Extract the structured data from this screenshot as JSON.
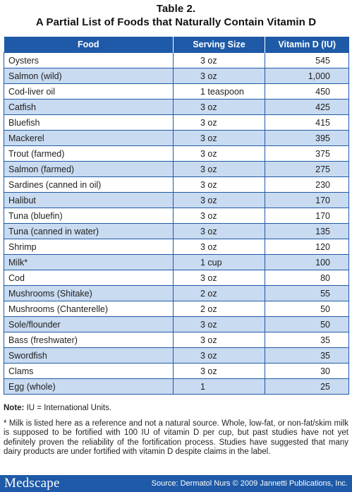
{
  "title": {
    "line1": "Table 2.",
    "line2": "A Partial List of Foods that Naturally Contain Vitamin D"
  },
  "table": {
    "headers": [
      "Food",
      "Serving Size",
      "Vitamin D (IU)"
    ],
    "rows": [
      {
        "food": "Oysters",
        "serving": "3 oz",
        "vitamin_d": "545"
      },
      {
        "food": "Salmon (wild)",
        "serving": "3 oz",
        "vitamin_d": "1,000"
      },
      {
        "food": "Cod-liver oil",
        "serving": "1 teaspoon",
        "vitamin_d": "450"
      },
      {
        "food": "Catfish",
        "serving": "3 oz",
        "vitamin_d": "425"
      },
      {
        "food": "Bluefish",
        "serving": "3 oz",
        "vitamin_d": "415"
      },
      {
        "food": "Mackerel",
        "serving": "3 oz",
        "vitamin_d": "395"
      },
      {
        "food": "Trout (farmed)",
        "serving": "3 oz",
        "vitamin_d": "375"
      },
      {
        "food": "Salmon (farmed)",
        "serving": "3 oz",
        "vitamin_d": "275"
      },
      {
        "food": "Sardines (canned in oil)",
        "serving": "3 oz",
        "vitamin_d": "230"
      },
      {
        "food": "Halibut",
        "serving": "3 oz",
        "vitamin_d": "170"
      },
      {
        "food": "Tuna (bluefin)",
        "serving": "3 oz",
        "vitamin_d": "170"
      },
      {
        "food": "Tuna (canned in water)",
        "serving": "3 oz",
        "vitamin_d": "135"
      },
      {
        "food": "Shrimp",
        "serving": "3 oz",
        "vitamin_d": "120"
      },
      {
        "food": "Milk*",
        "serving": "1 cup",
        "vitamin_d": "100"
      },
      {
        "food": "Cod",
        "serving": "3 oz",
        "vitamin_d": "80"
      },
      {
        "food": "Mushrooms (Shitake)",
        "serving": "2 oz",
        "vitamin_d": "55"
      },
      {
        "food": "Mushrooms (Chanterelle)",
        "serving": "2 oz",
        "vitamin_d": "50"
      },
      {
        "food": "Sole/flounder",
        "serving": "3 oz",
        "vitamin_d": "50"
      },
      {
        "food": "Bass (freshwater)",
        "serving": "3 oz",
        "vitamin_d": "35"
      },
      {
        "food": "Swordfish",
        "serving": "3 oz",
        "vitamin_d": "35"
      },
      {
        "food": "Clams",
        "serving": "3 oz",
        "vitamin_d": "30"
      },
      {
        "food": "Egg (whole)",
        "serving": "1",
        "vitamin_d": "25"
      }
    ]
  },
  "notes": {
    "note_label": "Note:",
    "note_text": " IU = International Units.",
    "footnote": "* Milk is listed here as a reference and not a natural source. Whole, low-fat, or non-fat/skim milk is supposed to be fortified with 100 IU of vitamin D per cup, but past studies have not yet definitely proven the reliability of the fortification process. Studies have suggested that many dairy products are under fortified with vitamin D despite claims in the label."
  },
  "footer": {
    "logo": "Medscape",
    "source": "Source: Dermatol Nurs © 2009 Jannetti Publications, Inc."
  },
  "colors": {
    "header_blue": "#1e5aa8",
    "stripe_blue": "#c9dbf0"
  }
}
